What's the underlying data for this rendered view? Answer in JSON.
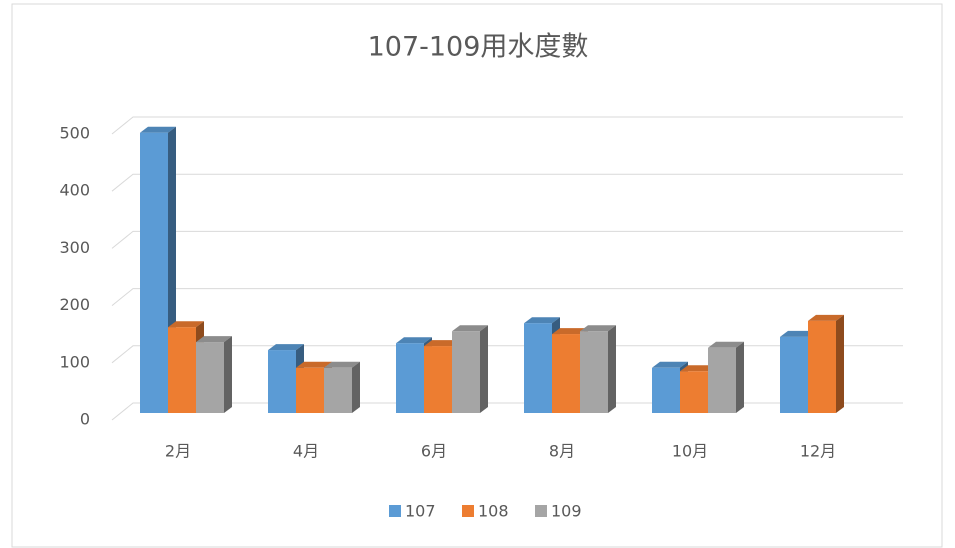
{
  "chart_data": {
    "type": "bar3d",
    "title": "107-109用水度數",
    "categories": [
      "2月",
      "4月",
      "6月",
      "8月",
      "10月",
      "12月"
    ],
    "series": [
      {
        "name": "107",
        "color": "#5b9bd5",
        "values": [
          490,
          110,
          122,
          157,
          79,
          133
        ]
      },
      {
        "name": "108",
        "color": "#ed7d31",
        "values": [
          150,
          79,
          117,
          138,
          73,
          161
        ]
      },
      {
        "name": "109",
        "color": "#a5a5a5",
        "values": [
          124,
          79,
          143,
          143,
          114,
          null
        ]
      }
    ],
    "ylim": [
      0,
      500
    ],
    "yticks": [
      0,
      100,
      200,
      300,
      400,
      500
    ],
    "grid": true,
    "legend": "bottom"
  }
}
